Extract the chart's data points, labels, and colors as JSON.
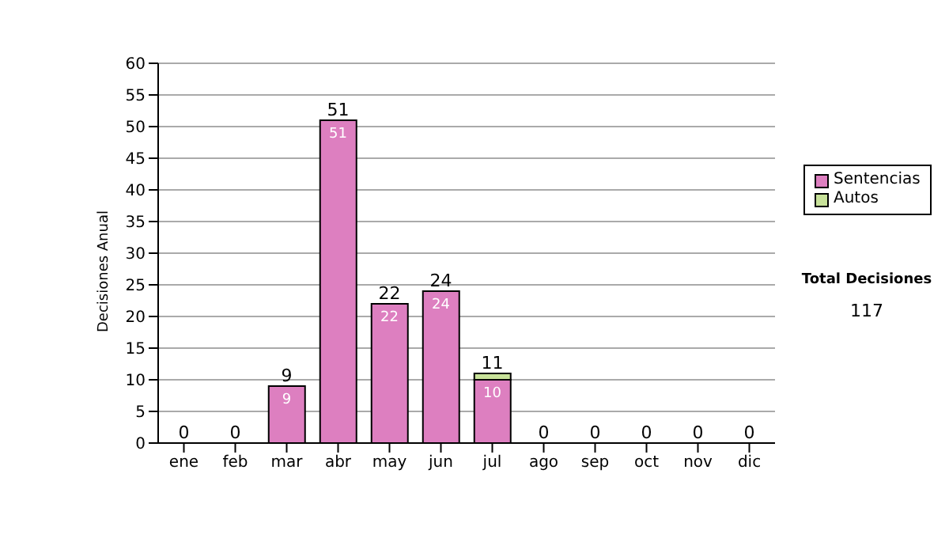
{
  "chart_data": {
    "type": "bar",
    "ylabel": "Decisiones Anual",
    "categories": [
      "ene",
      "feb",
      "mar",
      "abr",
      "may",
      "jun",
      "jul",
      "ago",
      "sep",
      "oct",
      "nov",
      "dic"
    ],
    "series": [
      {
        "name": "Sentencias",
        "color": "#dd7fc0",
        "values": [
          0,
          0,
          9,
          51,
          22,
          24,
          10,
          0,
          0,
          0,
          0,
          0
        ],
        "value_labels": [
          null,
          null,
          "9",
          "51",
          "22",
          "24",
          "10",
          null,
          null,
          null,
          null,
          null
        ]
      },
      {
        "name": "Autos",
        "color": "#c8e29a",
        "values": [
          0,
          0,
          0,
          0,
          0,
          0,
          1,
          0,
          0,
          0,
          0,
          0
        ]
      }
    ],
    "stacked": true,
    "totals": [
      "0",
      "0",
      "9",
      "51",
      "22",
      "24",
      "11",
      "0",
      "0",
      "0",
      "0",
      "0"
    ],
    "ylim": [
      0,
      60
    ],
    "yticks": [
      0,
      5,
      10,
      15,
      20,
      25,
      30,
      35,
      40,
      45,
      50,
      55,
      60
    ],
    "grid": "y",
    "legend": "right",
    "annotations": [
      "Total Decisiones",
      "117"
    ]
  }
}
